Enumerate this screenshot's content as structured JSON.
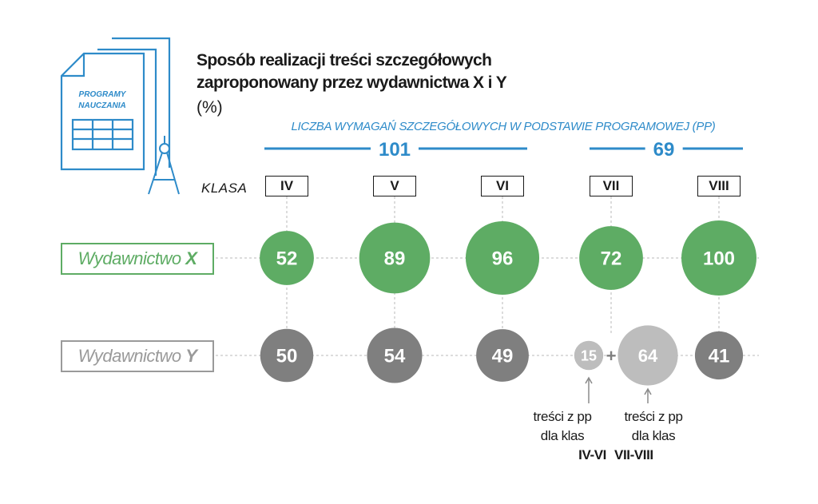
{
  "title_lines": [
    "Sposób realizacji treści szczegółowych",
    "zaproponowany przez wydawnictwa X i Y"
  ],
  "unit": "(%)",
  "icon_text": [
    "PROGRAMY",
    "NAUCZANIA"
  ],
  "pp_header": "LICZBA WYMAGAŃ SZCZEGÓŁOWYCH W PODSTAWIE PROGRAMOWEJ (PP)",
  "pp_groups": [
    {
      "value": "101",
      "classes": [
        "IV",
        "V",
        "VI"
      ]
    },
    {
      "value": "69",
      "classes": [
        "VII",
        "VIII"
      ]
    }
  ],
  "klasa_label": "KLASA",
  "publishers": {
    "x_prefix": "Wydawnictwo ",
    "x_letter": "X",
    "y_prefix": "Wydawnictwo ",
    "y_letter": "Y"
  },
  "colors": {
    "accent_blue": "#2e8bc9",
    "publisher_x": "#5eac64",
    "publisher_y": "#7f7f7f",
    "publisher_y_split": "#bdbdbd"
  },
  "chart_data": {
    "type": "bubble",
    "categories": [
      "IV",
      "V",
      "VI",
      "VII",
      "VIII"
    ],
    "series": [
      {
        "name": "Wydawnictwo X",
        "values": [
          52,
          89,
          96,
          72,
          100
        ]
      },
      {
        "name": "Wydawnictwo Y",
        "values": [
          50,
          54,
          49,
          null,
          41
        ],
        "split": {
          "category": "VII",
          "parts": [
            15,
            64
          ],
          "operator": "+"
        }
      }
    ]
  },
  "notes": [
    {
      "line1": "treści z pp",
      "line2": "dla klas",
      "line3": "IV-VI"
    },
    {
      "line1": "treści z pp",
      "line2": "dla klas",
      "line3": "VII-VIII"
    }
  ]
}
